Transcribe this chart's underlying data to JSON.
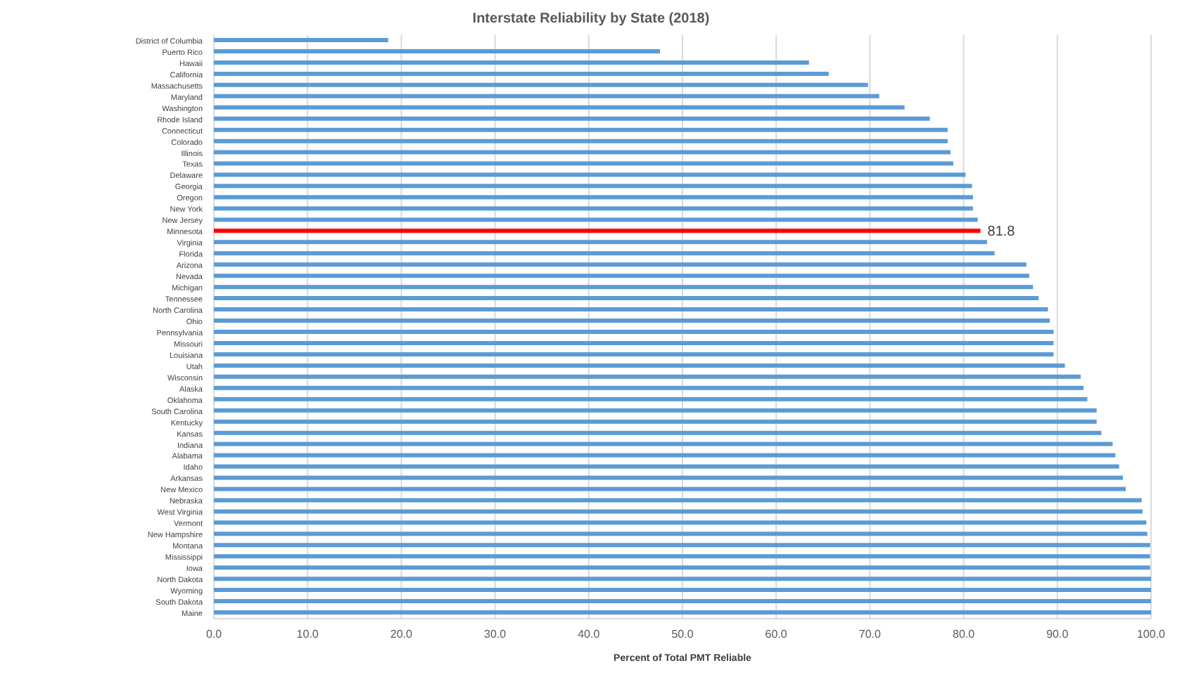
{
  "chart_data": {
    "type": "bar",
    "orientation": "horizontal",
    "title": "Interstate Reliability by State (2018)",
    "xlabel": "Percent  of Total PMT Reliable",
    "categories": [
      "District of Columbia",
      "Puerto Rico",
      "Hawaii",
      "California",
      "Massachusetts",
      "Maryland",
      "Washington",
      "Rhode Island",
      "Connecticut",
      "Colorado",
      "Illinois",
      "Texas",
      "Delaware",
      "Georgia",
      "Oregon",
      "New York",
      "New Jersey",
      "Minnesota",
      "Virginia",
      "Florida",
      "Arizona",
      "Nevada",
      "Michigan",
      "Tennessee",
      "North Carolina",
      "Ohio",
      "Pennsylvania",
      "Missouri",
      "Louisiana",
      "Utah",
      "Wisconsin",
      "Alaska",
      "Oklahoma",
      "South Carolina",
      "Kentucky",
      "Kansas",
      "Indiana",
      "Alabama",
      "Idaho",
      "Arkansas",
      "New Mexico",
      "Nebraska",
      "West Virginia",
      "Vermont",
      "New Hampshire",
      "Montana",
      "Mississippi",
      "Iowa",
      "North Dakota",
      "Wyoming",
      "South Dakota",
      "Maine"
    ],
    "values": [
      18.6,
      47.6,
      63.5,
      65.6,
      69.8,
      71.0,
      73.7,
      76.4,
      78.3,
      78.3,
      78.6,
      78.9,
      80.2,
      80.9,
      81.0,
      81.0,
      81.5,
      81.8,
      82.5,
      83.3,
      86.7,
      87.0,
      87.4,
      88.0,
      89.0,
      89.2,
      89.6,
      89.6,
      89.6,
      90.8,
      92.5,
      92.8,
      93.2,
      94.2,
      94.2,
      94.7,
      95.9,
      96.2,
      96.6,
      97.0,
      97.3,
      99.0,
      99.1,
      99.5,
      99.6,
      99.9,
      99.9,
      99.9,
      100,
      100,
      100,
      100
    ],
    "colors": [
      "#5b9bd5",
      "#5b9bd5",
      "#5b9bd5",
      "#5b9bd5",
      "#5b9bd5",
      "#5b9bd5",
      "#5b9bd5",
      "#5b9bd5",
      "#5b9bd5",
      "#5b9bd5",
      "#5b9bd5",
      "#5b9bd5",
      "#5b9bd5",
      "#5b9bd5",
      "#5b9bd5",
      "#5b9bd5",
      "#5b9bd5",
      "#ff0000",
      "#5b9bd5",
      "#5b9bd5",
      "#5b9bd5",
      "#5b9bd5",
      "#5b9bd5",
      "#5b9bd5",
      "#5b9bd5",
      "#5b9bd5",
      "#5b9bd5",
      "#5b9bd5",
      "#5b9bd5",
      "#5b9bd5",
      "#5b9bd5",
      "#5b9bd5",
      "#5b9bd5",
      "#5b9bd5",
      "#5b9bd5",
      "#5b9bd5",
      "#5b9bd5",
      "#5b9bd5",
      "#5b9bd5",
      "#5b9bd5",
      "#5b9bd5",
      "#5b9bd5",
      "#5b9bd5",
      "#5b9bd5",
      "#5b9bd5",
      "#5b9bd5",
      "#5b9bd5",
      "#5b9bd5",
      "#5b9bd5",
      "#5b9bd5",
      "#5b9bd5",
      "#5b9bd5"
    ],
    "value_labels": [
      null,
      null,
      null,
      null,
      null,
      null,
      null,
      null,
      null,
      null,
      null,
      null,
      null,
      null,
      null,
      null,
      null,
      "81.8",
      null,
      null,
      null,
      null,
      null,
      null,
      null,
      null,
      null,
      null,
      null,
      null,
      null,
      null,
      null,
      null,
      null,
      null,
      null,
      null,
      null,
      null,
      null,
      null,
      null,
      null,
      null,
      null,
      null,
      null,
      null,
      null,
      null,
      null
    ],
    "xlim": [
      0,
      100
    ],
    "xticks": [
      {
        "value": 0,
        "label": "0.0"
      },
      {
        "value": 10,
        "label": "10.0"
      },
      {
        "value": 20,
        "label": "20.0"
      },
      {
        "value": 30,
        "label": "30.0"
      },
      {
        "value": 40,
        "label": "40.0"
      },
      {
        "value": 50,
        "label": "50.0"
      },
      {
        "value": 60,
        "label": "60.0"
      },
      {
        "value": 70,
        "label": "70.0"
      },
      {
        "value": 80,
        "label": "80.0"
      },
      {
        "value": 90,
        "label": "90.0"
      },
      {
        "value": 100,
        "label": "100.0"
      }
    ],
    "grid": "x"
  }
}
